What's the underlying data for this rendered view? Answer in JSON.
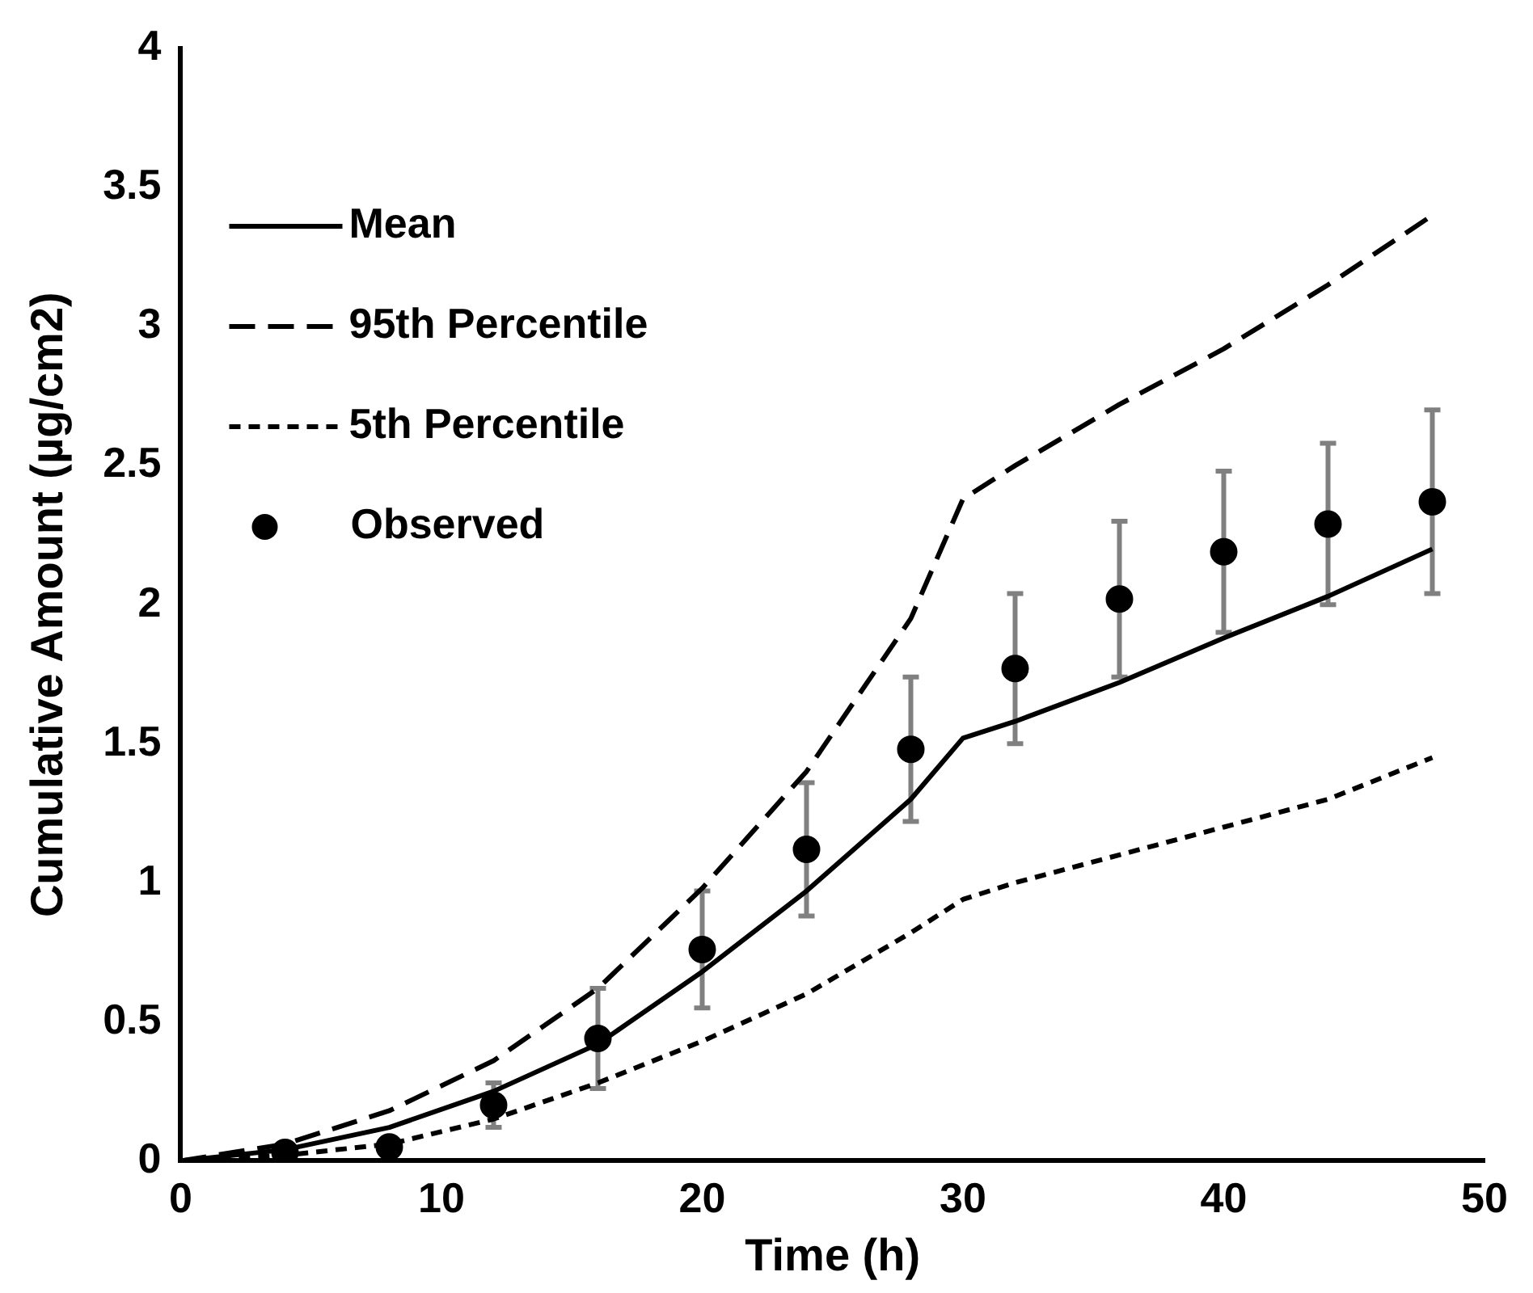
{
  "chart_data": {
    "type": "line",
    "xlabel": "Time (h)",
    "ylabel": "Cumulative Amount (µg/cm2)",
    "xlim": [
      0,
      50
    ],
    "xticks": [
      0,
      10,
      20,
      30,
      40,
      50
    ],
    "ylim": [
      0,
      4
    ],
    "yticks": [
      0,
      0.5,
      1,
      1.5,
      2,
      2.5,
      3,
      3.5,
      4
    ],
    "grid": false,
    "legend": "top left",
    "series": [
      {
        "name": "Mean",
        "type": "line",
        "color": "#000000",
        "line_style": "solid",
        "marker": "none",
        "x": [
          0,
          4,
          8,
          12,
          16,
          20,
          24,
          28,
          30,
          32,
          36,
          40,
          44,
          48
        ],
        "values": [
          0,
          0.04,
          0.12,
          0.25,
          0.42,
          0.68,
          0.97,
          1.3,
          1.52,
          1.58,
          1.72,
          1.88,
          2.03,
          2.2
        ]
      },
      {
        "name": "95th Percentile",
        "type": "line",
        "color": "#000000",
        "line_style": "dashed",
        "marker": "none",
        "x": [
          0,
          4,
          8,
          12,
          16,
          20,
          24,
          28,
          30,
          32,
          36,
          40,
          44,
          48
        ],
        "values": [
          0,
          0.06,
          0.18,
          0.36,
          0.62,
          0.98,
          1.4,
          1.95,
          2.38,
          2.5,
          2.72,
          2.92,
          3.15,
          3.4
        ]
      },
      {
        "name": "5th Percentile",
        "type": "line",
        "color": "#000000",
        "line_style": "dotted",
        "marker": "none",
        "x": [
          0,
          4,
          8,
          12,
          16,
          20,
          24,
          28,
          30,
          32,
          36,
          40,
          44,
          48
        ],
        "values": [
          0,
          0.02,
          0.06,
          0.15,
          0.28,
          0.43,
          0.6,
          0.82,
          0.94,
          1.0,
          1.1,
          1.2,
          1.3,
          1.45
        ]
      },
      {
        "name": "Observed",
        "type": "scatter",
        "color": "#000000",
        "marker": "circle",
        "x": [
          4,
          8,
          12,
          16,
          20,
          24,
          28,
          32,
          36,
          40,
          44,
          48
        ],
        "values": [
          0.03,
          0.05,
          0.2,
          0.44,
          0.76,
          1.12,
          1.48,
          1.77,
          2.02,
          2.19,
          2.29,
          2.37
        ],
        "errors": [
          null,
          null,
          0.08,
          0.18,
          0.21,
          0.24,
          0.26,
          0.27,
          0.28,
          0.29,
          0.29,
          0.33
        ]
      }
    ]
  }
}
